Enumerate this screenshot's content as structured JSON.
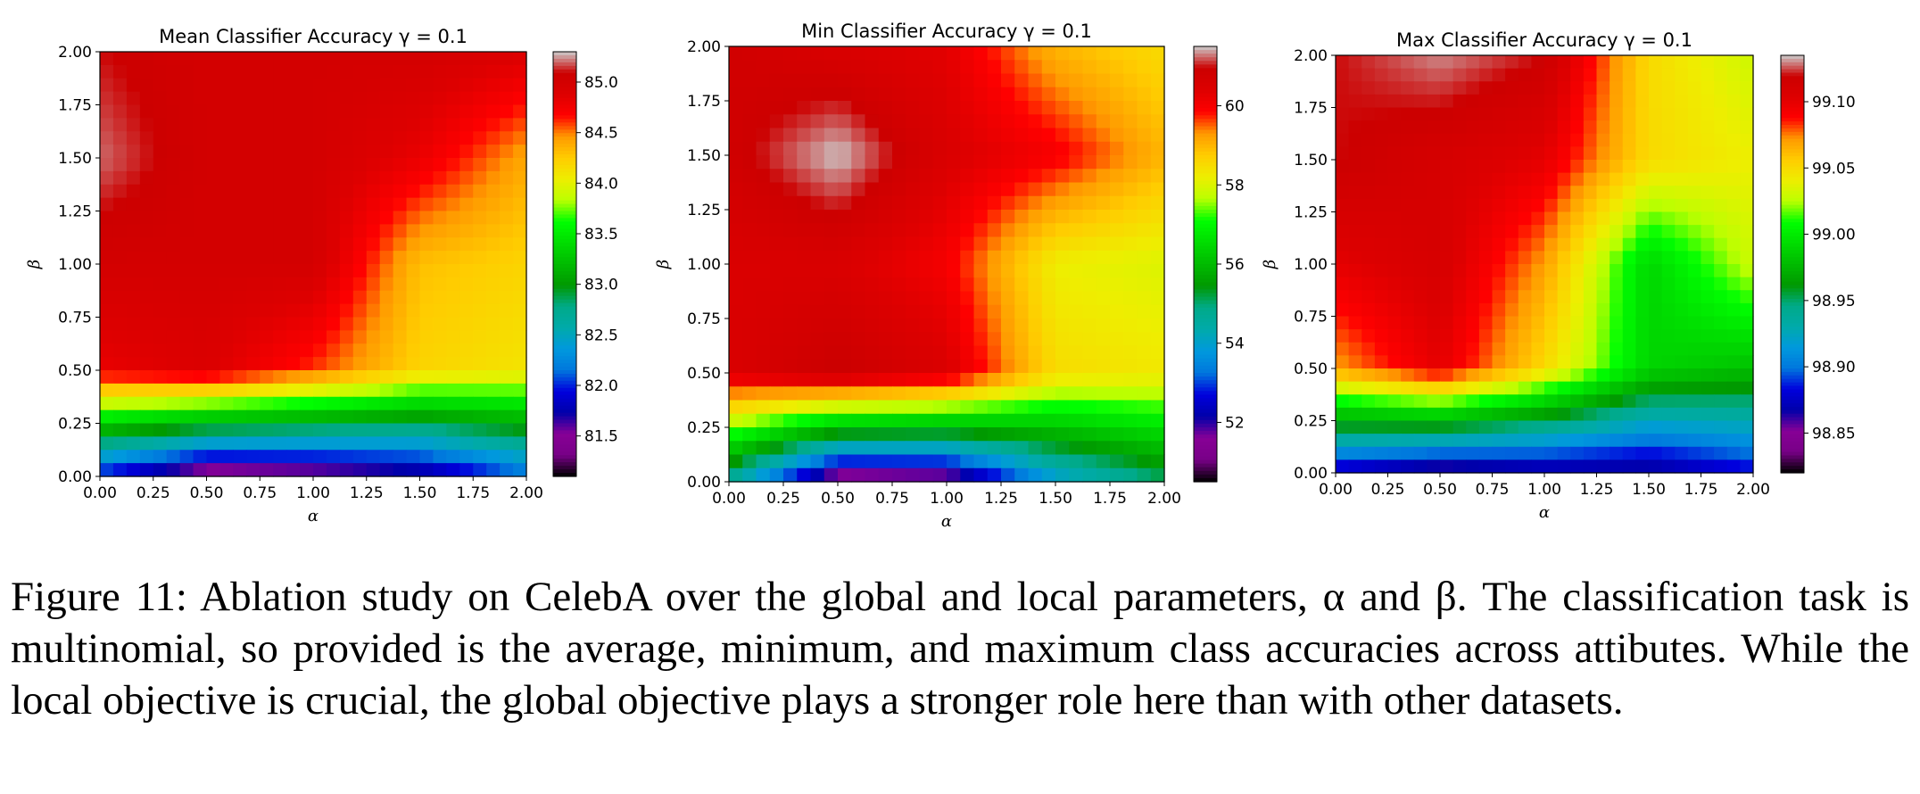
{
  "chart_data": [
    {
      "type": "heatmap",
      "title": "Mean Classifier Accuracy γ = 0.1",
      "xlabel": "α",
      "ylabel": "β",
      "x": [
        0.0,
        0.5,
        1.0,
        1.5,
        2.0
      ],
      "y": [
        0.0,
        0.5,
        1.0,
        1.5,
        2.0
      ],
      "x_ticks": [
        "0.00",
        "0.25",
        "0.50",
        "0.75",
        "1.00",
        "1.25",
        "1.50",
        "1.75",
        "2.00"
      ],
      "y_ticks": [
        "0.00",
        "0.25",
        "0.50",
        "0.75",
        "1.00",
        "1.25",
        "1.50",
        "1.75",
        "2.00"
      ],
      "z": [
        [
          81.9,
          81.3,
          81.4,
          81.6,
          82.1
        ],
        [
          84.8,
          84.9,
          84.6,
          84.2,
          84.1
        ],
        [
          85.0,
          85.0,
          85.0,
          84.3,
          84.2
        ],
        [
          85.2,
          85.0,
          85.0,
          84.8,
          84.4
        ],
        [
          85.1,
          85.0,
          85.0,
          85.0,
          84.9
        ]
      ],
      "zlim": [
        81.1,
        85.3
      ],
      "colorbar_ticks": [
        "81.5",
        "82.0",
        "82.5",
        "83.0",
        "83.5",
        "84.0",
        "84.5",
        "85.0"
      ],
      "colormap": "nipy_spectral"
    },
    {
      "type": "heatmap",
      "title": "Min Classifier Accuracy γ = 0.1",
      "xlabel": "α",
      "ylabel": "β",
      "x": [
        0.0,
        0.5,
        1.0,
        1.5,
        2.0
      ],
      "y": [
        0.0,
        0.5,
        1.0,
        1.5,
        2.0
      ],
      "x_ticks": [
        "0.00",
        "0.25",
        "0.50",
        "0.75",
        "1.00",
        "1.25",
        "1.50",
        "1.75",
        "2.00"
      ],
      "y_ticks": [
        "0.00",
        "0.25",
        "0.50",
        "0.75",
        "1.00",
        "1.25",
        "1.50",
        "1.75",
        "2.00"
      ],
      "z": [
        [
          54.5,
          51.0,
          51.2,
          53.8,
          55.0
        ],
        [
          60.5,
          61.0,
          60.5,
          58.5,
          58.3
        ],
        [
          60.5,
          60.5,
          60.0,
          58.2,
          58.0
        ],
        [
          60.8,
          61.5,
          60.5,
          60.0,
          59.0
        ],
        [
          60.8,
          60.5,
          60.3,
          59.0,
          58.5
        ]
      ],
      "zlim": [
        50.5,
        61.5
      ],
      "colorbar_ticks": [
        "52",
        "54",
        "56",
        "58",
        "60"
      ],
      "colormap": "nipy_spectral"
    },
    {
      "type": "heatmap",
      "title": "Max Classifier Accuracy γ = 0.1",
      "xlabel": "α",
      "ylabel": "β",
      "x": [
        0.0,
        0.5,
        1.0,
        1.5,
        2.0
      ],
      "y": [
        0.0,
        0.5,
        1.0,
        1.5,
        2.0
      ],
      "x_ticks": [
        "0.00",
        "0.25",
        "0.50",
        "0.75",
        "1.00",
        "1.25",
        "1.50",
        "1.75",
        "2.00"
      ],
      "y_ticks": [
        "0.00",
        "0.25",
        "0.50",
        "0.75",
        "1.00",
        "1.25",
        "1.50",
        "1.75",
        "2.00"
      ],
      "z": [
        [
          98.87,
          98.85,
          98.86,
          98.86,
          98.88
        ],
        [
          99.07,
          99.1,
          99.05,
          98.99,
          98.98
        ],
        [
          99.1,
          99.11,
          99.07,
          98.99,
          99.03
        ],
        [
          99.12,
          99.11,
          99.1,
          99.05,
          99.04
        ],
        [
          99.12,
          99.13,
          99.12,
          99.05,
          99.03
        ]
      ],
      "zlim": [
        98.82,
        99.135
      ],
      "colorbar_ticks": [
        "98.85",
        "98.90",
        "98.95",
        "99.00",
        "99.05",
        "99.10"
      ],
      "colormap": "nipy_spectral"
    }
  ],
  "caption": "Figure 11: Ablation study on CelebA over the global and local parameters, α and β. The classification task is multinomial, so provided is the average, minimum, and maximum class accuracies across attibutes. While the local objective is crucial, the global objective plays a stronger role here than with other datasets."
}
